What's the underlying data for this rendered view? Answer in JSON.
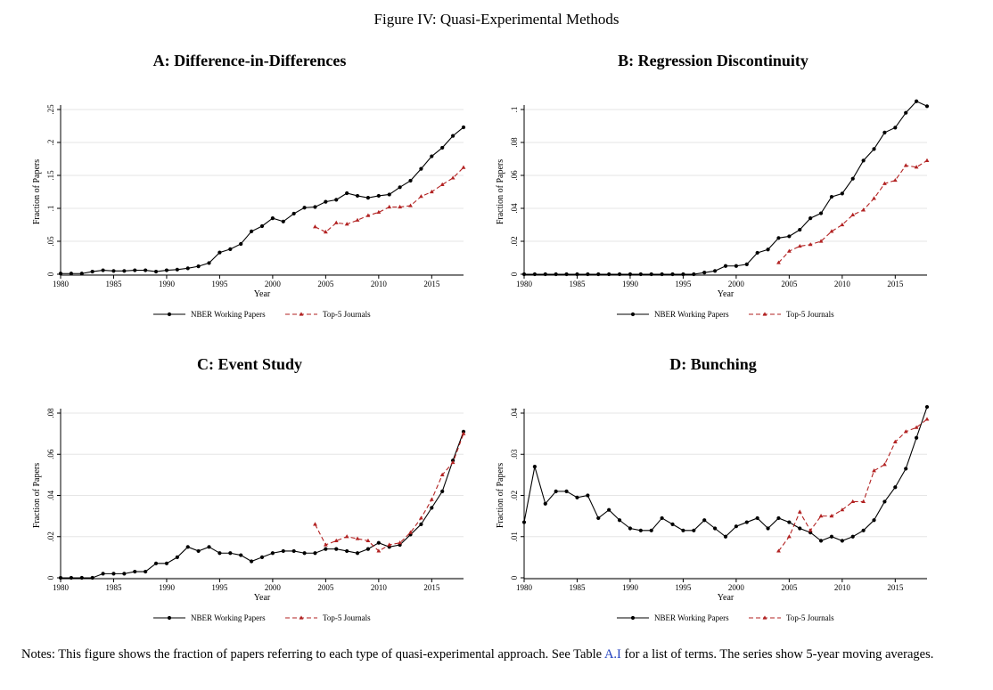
{
  "figure_title": "Figure IV: Quasi-Experimental Methods",
  "notes": {
    "before": "Notes: This figure shows the fraction of papers referring to each type of quasi-experimental approach. See Table ",
    "link": "A.I",
    "after": " for a list of terms. The series show 5-year moving averages."
  },
  "colors": {
    "nber": "#000000",
    "top5": "#b22222",
    "grid": "#e6e6e6"
  },
  "chart_data": [
    {
      "type": "line",
      "title": "A: Difference-in-Differences",
      "xlabel": "Year",
      "ylabel": "Fraction of Papers",
      "xlim": [
        1980,
        2018
      ],
      "ylim": [
        0,
        0.25
      ],
      "xticks": [
        1980,
        1985,
        1990,
        1995,
        2000,
        2005,
        2010,
        2015
      ],
      "yticks": [
        0,
        0.05,
        0.1,
        0.15,
        0.2,
        0.25
      ],
      "ytick_labels": [
        "0",
        ".05",
        ".1",
        ".15",
        ".2",
        ".25"
      ],
      "grid": true,
      "legend_position": "bottom",
      "series": [
        {
          "name": "NBER Working Papers",
          "style": "solid-circle",
          "x": [
            1980,
            1981,
            1982,
            1983,
            1984,
            1985,
            1986,
            1987,
            1988,
            1989,
            1990,
            1991,
            1992,
            1993,
            1994,
            1995,
            1996,
            1997,
            1998,
            1999,
            2000,
            2001,
            2002,
            2003,
            2004,
            2005,
            2006,
            2007,
            2008,
            2009,
            2010,
            2011,
            2012,
            2013,
            2014,
            2015,
            2016,
            2017,
            2018
          ],
          "values": [
            0.001,
            0.001,
            0.001,
            0.004,
            0.006,
            0.005,
            0.005,
            0.006,
            0.006,
            0.004,
            0.006,
            0.007,
            0.009,
            0.012,
            0.017,
            0.033,
            0.038,
            0.046,
            0.065,
            0.073,
            0.085,
            0.08,
            0.092,
            0.101,
            0.102,
            0.11,
            0.113,
            0.123,
            0.119,
            0.116,
            0.119,
            0.121,
            0.132,
            0.142,
            0.16,
            0.179,
            0.192,
            0.21,
            0.223
          ]
        },
        {
          "name": "Top-5 Journals",
          "style": "dashed-triangle",
          "x": [
            2004,
            2005,
            2006,
            2007,
            2008,
            2009,
            2010,
            2011,
            2012,
            2013,
            2014,
            2015,
            2016,
            2017,
            2018
          ],
          "values": [
            0.072,
            0.064,
            0.078,
            0.076,
            0.082,
            0.089,
            0.094,
            0.102,
            0.102,
            0.104,
            0.118,
            0.125,
            0.136,
            0.146,
            0.162
          ]
        }
      ]
    },
    {
      "type": "line",
      "title": "B: Regression Discontinuity",
      "xlabel": "Year",
      "ylabel": "Fraction of Papers",
      "xlim": [
        1980,
        2018
      ],
      "ylim": [
        0,
        0.1
      ],
      "xticks": [
        1980,
        1985,
        1990,
        1995,
        2000,
        2005,
        2010,
        2015
      ],
      "yticks": [
        0,
        0.02,
        0.04,
        0.06,
        0.08,
        0.1
      ],
      "ytick_labels": [
        "0",
        ".02",
        ".04",
        ".06",
        ".08",
        ".1"
      ],
      "grid": true,
      "legend_position": "bottom",
      "series": [
        {
          "name": "NBER Working Papers",
          "style": "solid-circle",
          "x": [
            1980,
            1981,
            1982,
            1983,
            1984,
            1985,
            1986,
            1987,
            1988,
            1989,
            1990,
            1991,
            1992,
            1993,
            1994,
            1995,
            1996,
            1997,
            1998,
            1999,
            2000,
            2001,
            2002,
            2003,
            2004,
            2005,
            2006,
            2007,
            2008,
            2009,
            2010,
            2011,
            2012,
            2013,
            2014,
            2015,
            2016,
            2017,
            2018
          ],
          "values": [
            0,
            0,
            0,
            0,
            0,
            0,
            0,
            0,
            0,
            0,
            0,
            0,
            0,
            0,
            0,
            0,
            0,
            0.001,
            0.002,
            0.005,
            0.005,
            0.006,
            0.013,
            0.015,
            0.022,
            0.023,
            0.027,
            0.034,
            0.037,
            0.047,
            0.049,
            0.058,
            0.069,
            0.076,
            0.086,
            0.089,
            0.098,
            0.105,
            0.102
          ]
        },
        {
          "name": "Top-5 Journals",
          "style": "dashed-triangle",
          "x": [
            2004,
            2005,
            2006,
            2007,
            2008,
            2009,
            2010,
            2011,
            2012,
            2013,
            2014,
            2015,
            2016,
            2017,
            2018
          ],
          "values": [
            0.007,
            0.014,
            0.017,
            0.018,
            0.02,
            0.026,
            0.03,
            0.036,
            0.039,
            0.046,
            0.055,
            0.057,
            0.066,
            0.065,
            0.069
          ]
        }
      ]
    },
    {
      "type": "line",
      "title": "C: Event Study",
      "xlabel": "Year",
      "ylabel": "Fraction of Papers",
      "xlim": [
        1980,
        2018
      ],
      "ylim": [
        0,
        0.08
      ],
      "xticks": [
        1980,
        1985,
        1990,
        1995,
        2000,
        2005,
        2010,
        2015
      ],
      "yticks": [
        0,
        0.02,
        0.04,
        0.06,
        0.08
      ],
      "ytick_labels": [
        "0",
        ".02",
        ".04",
        ".06",
        ".08"
      ],
      "grid": true,
      "legend_position": "bottom",
      "series": [
        {
          "name": "NBER Working Papers",
          "style": "solid-circle",
          "x": [
            1980,
            1981,
            1982,
            1983,
            1984,
            1985,
            1986,
            1987,
            1988,
            1989,
            1990,
            1991,
            1992,
            1993,
            1994,
            1995,
            1996,
            1997,
            1998,
            1999,
            2000,
            2001,
            2002,
            2003,
            2004,
            2005,
            2006,
            2007,
            2008,
            2009,
            2010,
            2011,
            2012,
            2013,
            2014,
            2015,
            2016,
            2017,
            2018
          ],
          "values": [
            0,
            0,
            0,
            0,
            0.002,
            0.002,
            0.002,
            0.003,
            0.003,
            0.007,
            0.007,
            0.01,
            0.015,
            0.013,
            0.015,
            0.012,
            0.012,
            0.011,
            0.008,
            0.01,
            0.012,
            0.013,
            0.013,
            0.012,
            0.012,
            0.014,
            0.014,
            0.013,
            0.012,
            0.014,
            0.017,
            0.015,
            0.016,
            0.021,
            0.026,
            0.034,
            0.042,
            0.057,
            0.071
          ]
        },
        {
          "name": "Top-5 Journals",
          "style": "dashed-triangle",
          "x": [
            2004,
            2005,
            2006,
            2007,
            2008,
            2009,
            2010,
            2011,
            2012,
            2013,
            2014,
            2015,
            2016,
            2017,
            2018
          ],
          "values": [
            0.026,
            0.016,
            0.018,
            0.02,
            0.019,
            0.018,
            0.013,
            0.016,
            0.017,
            0.022,
            0.029,
            0.038,
            0.05,
            0.056,
            0.07
          ]
        }
      ]
    },
    {
      "type": "line",
      "title": "D: Bunching",
      "xlabel": "Year",
      "ylabel": "Fraction of Papers",
      "xlim": [
        1980,
        2018
      ],
      "ylim": [
        0,
        0.04
      ],
      "xticks": [
        1980,
        1985,
        1990,
        1995,
        2000,
        2005,
        2010,
        2015
      ],
      "yticks": [
        0,
        0.01,
        0.02,
        0.03,
        0.04
      ],
      "ytick_labels": [
        "0",
        ".01",
        ".02",
        ".03",
        ".04"
      ],
      "grid": true,
      "legend_position": "bottom",
      "series": [
        {
          "name": "NBER Working Papers",
          "style": "solid-circle",
          "x": [
            1980,
            1981,
            1982,
            1983,
            1984,
            1985,
            1986,
            1987,
            1988,
            1989,
            1990,
            1991,
            1992,
            1993,
            1994,
            1995,
            1996,
            1997,
            1998,
            1999,
            2000,
            2001,
            2002,
            2003,
            2004,
            2005,
            2006,
            2007,
            2008,
            2009,
            2010,
            2011,
            2012,
            2013,
            2014,
            2015,
            2016,
            2017,
            2018
          ],
          "values": [
            0.0135,
            0.027,
            0.018,
            0.021,
            0.021,
            0.0195,
            0.02,
            0.0145,
            0.0165,
            0.014,
            0.012,
            0.0115,
            0.0115,
            0.0145,
            0.013,
            0.0115,
            0.0115,
            0.014,
            0.012,
            0.01,
            0.0125,
            0.0135,
            0.0145,
            0.012,
            0.0145,
            0.0135,
            0.012,
            0.011,
            0.009,
            0.01,
            0.009,
            0.01,
            0.0115,
            0.014,
            0.0185,
            0.022,
            0.0265,
            0.034,
            0.0415
          ]
        },
        {
          "name": "Top-5 Journals",
          "style": "dashed-triangle",
          "x": [
            2004,
            2005,
            2006,
            2007,
            2008,
            2009,
            2010,
            2011,
            2012,
            2013,
            2014,
            2015,
            2016,
            2017,
            2018
          ],
          "values": [
            0.0065,
            0.01,
            0.016,
            0.0115,
            0.015,
            0.015,
            0.0165,
            0.0185,
            0.0185,
            0.026,
            0.0275,
            0.033,
            0.0355,
            0.0365,
            0.0385
          ]
        }
      ]
    }
  ]
}
